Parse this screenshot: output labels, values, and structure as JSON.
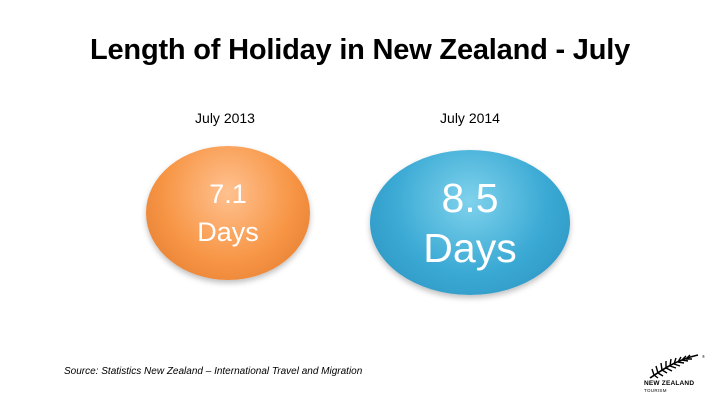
{
  "slide": {
    "title": "Length of Holiday in New Zealand - July"
  },
  "columns": [
    {
      "label": "July 2013",
      "value": "7.1",
      "unit": "Days",
      "color": "#f79646"
    },
    {
      "label": "July 2014",
      "value": "8.5",
      "unit": "Days",
      "color": "#3aa9d4"
    }
  ],
  "source": "Source: Statistics New Zealand – International Travel and Migration",
  "logo": {
    "icon": "silver-fern-icon",
    "text": "NEW ZEALAND",
    "subtext": "TOURISM"
  }
}
